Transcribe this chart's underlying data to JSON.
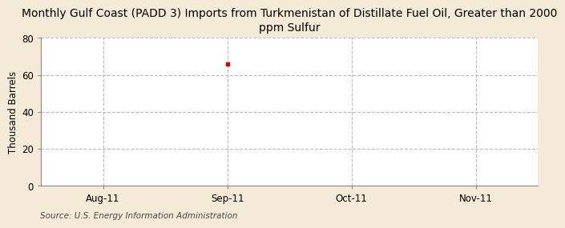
{
  "title": "Monthly Gulf Coast (PADD 3) Imports from Turkmenistan of Distillate Fuel Oil, Greater than 2000\nppm Sulfur",
  "ylabel": "Thousand Barrels",
  "source": "Source: U.S. Energy Information Administration",
  "fig_bg_color": "#f5ead8",
  "plot_bg_color": "#ffffff",
  "data_point_x": 1,
  "data_point_y": 66,
  "data_color": "#cc0000",
  "xtick_labels": [
    "Aug-11",
    "Sep-11",
    "Oct-11",
    "Nov-11"
  ],
  "xtick_positions": [
    0,
    1,
    2,
    3
  ],
  "ylim": [
    0,
    80
  ],
  "yticks": [
    0,
    20,
    40,
    60,
    80
  ],
  "xlim": [
    -0.5,
    3.5
  ],
  "grid_color": "#bbbbbb",
  "title_fontsize": 10,
  "ylabel_fontsize": 8.5,
  "tick_fontsize": 8.5,
  "source_fontsize": 7.5
}
